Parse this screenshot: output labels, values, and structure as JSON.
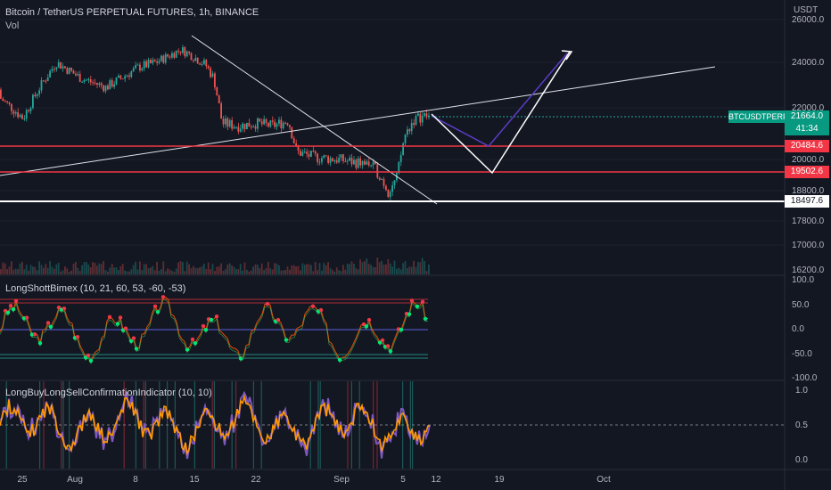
{
  "header": {
    "title": "Bitcoin / TetherUS PERPETUAL FUTURES, 1h, BINANCE",
    "vol_label": "Vol"
  },
  "price_axis": {
    "unit": "USDT",
    "ticks": [
      "26000.0",
      "24000.0",
      "22000.0",
      "20000.0",
      "18800.0",
      "17800.0",
      "17000.0",
      "16200.0"
    ]
  },
  "price_tags": {
    "symbol": "BTCUSDTPERP",
    "last": "21664.0",
    "countdown": "41:34",
    "level_upper": "20484.6",
    "level_lower": "19502.6",
    "level_support": "18497.6"
  },
  "time_axis": {
    "labels": [
      "25",
      "Aug",
      "8",
      "15",
      "22",
      "Sep",
      "5",
      "12",
      "19",
      "Oct"
    ]
  },
  "indicator1": {
    "name": "LongShottBimex (10, 21, 60, 53, -60, -53)",
    "ticks": [
      "100.0",
      "50.0",
      "0.0",
      "-50.0",
      "-100.0"
    ]
  },
  "indicator2": {
    "name": "LongBuyLongSellConfirmationIndicator (10, 10)",
    "ticks": [
      "1.0",
      "0.5",
      "0.0"
    ]
  },
  "colors": {
    "background": "#131722",
    "up": "#26a69a",
    "down": "#ef5350",
    "level_red": "#f23645",
    "support_white": "#ffffff",
    "projection_blue": "#5b3cc4",
    "osc_orange": "#ff9800",
    "osc_purple": "#7e57c2"
  },
  "chart_data": {
    "type": "line",
    "title": "Bitcoin / TetherUS PERPETUAL FUTURES, 1h, BINANCE",
    "x_unit": "date",
    "ylabel": "USDT",
    "series": [
      {
        "name": "",
        "x": [
          "Jul 21",
          "Jul 25",
          "Jul 27",
          "Jul 29",
          "Aug 1",
          "Aug 4",
          "Aug 8",
          "Aug 10",
          "Aug 13",
          "Aug 14",
          "Aug 16",
          "Aug 17",
          "Aug 18",
          "Aug 20",
          "Aug 22",
          "Aug 24",
          "Aug 26",
          "Aug 27",
          "Aug 29",
          "Sep 1",
          "Sep 3",
          "Sep 5",
          "Sep 6",
          "Sep 7",
          "Sep 8",
          "Sep 9",
          "Sep 10",
          "Sep 11"
        ],
        "values": [
          22800,
          21600,
          22900,
          24000,
          23300,
          22900,
          23800,
          24000,
          24600,
          24400,
          23900,
          23300,
          21400,
          21300,
          21400,
          21300,
          21500,
          20300,
          20100,
          20000,
          19900,
          19800,
          19400,
          18800,
          19200,
          20900,
          21500,
          21664
        ]
      }
    ],
    "levels": [
      20484.6,
      19502.6,
      18497.6
    ],
    "annotations": "trendlines and projected price path drawn on chart"
  }
}
